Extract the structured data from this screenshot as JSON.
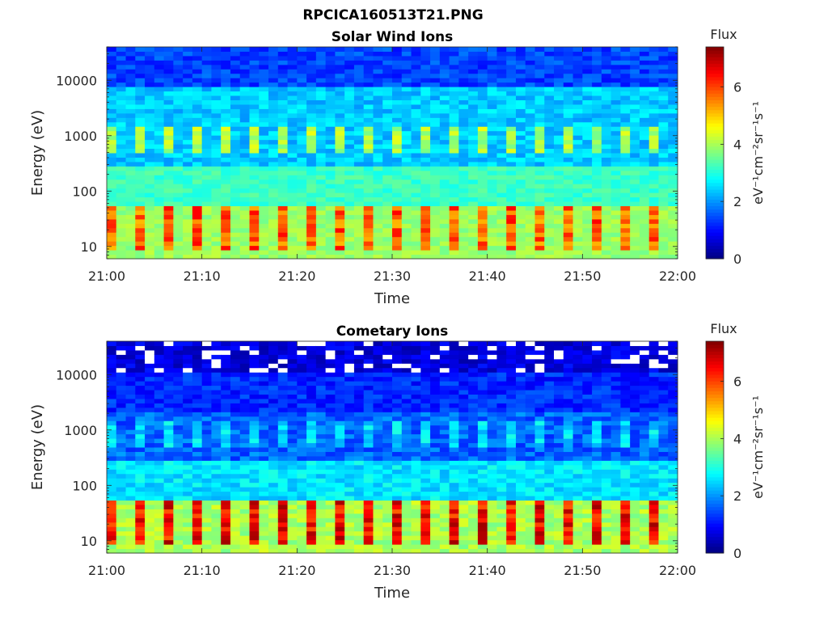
{
  "figure_title": "RPCICA160513T21.PNG",
  "chart_data": [
    {
      "type": "heatmap",
      "title": "Solar Wind Ions",
      "xlabel": "Time",
      "ylabel": "Energy (eV)",
      "yscale": "log",
      "x_ticks": [
        "21:00",
        "21:10",
        "21:20",
        "21:30",
        "21:40",
        "21:50",
        "22:00"
      ],
      "y_ticks": [
        "10",
        "100",
        "1000",
        "10000"
      ],
      "y_tick_values": [
        10,
        100,
        1000,
        10000
      ],
      "ylim": [
        6,
        40000
      ],
      "colorbar": {
        "title": "Flux",
        "label": "eV⁻¹cm⁻²sr⁻¹s⁻¹",
        "ticks": [
          "0",
          "2",
          "4",
          "6"
        ],
        "tick_values": [
          0,
          2,
          4,
          6
        ],
        "range": [
          0,
          7.4
        ],
        "colormap": "jet"
      },
      "features": [
        {
          "energy_range_eV": [
            8,
            50
          ],
          "peak_flux": 6.5,
          "description": "low energy band"
        },
        {
          "energy_range_eV": [
            500,
            1500
          ],
          "peak_flux": 4.5,
          "description": "pulsed band"
        }
      ]
    },
    {
      "type": "heatmap",
      "title": "Cometary Ions",
      "xlabel": "Time",
      "ylabel": "Energy (eV)",
      "yscale": "log",
      "x_ticks": [
        "21:00",
        "21:10",
        "21:20",
        "21:30",
        "21:40",
        "21:50",
        "22:00"
      ],
      "y_ticks": [
        "10",
        "100",
        "1000",
        "10000"
      ],
      "y_tick_values": [
        10,
        100,
        1000,
        10000
      ],
      "ylim": [
        6,
        40000
      ],
      "colorbar": {
        "title": "Flux",
        "label": "eV⁻¹cm⁻²sr⁻¹s⁻¹",
        "ticks": [
          "0",
          "2",
          "4",
          "6"
        ],
        "tick_values": [
          0,
          2,
          4,
          6
        ],
        "range": [
          0,
          7.4
        ],
        "colormap": "jet"
      },
      "features": [
        {
          "energy_range_eV": [
            8,
            50
          ],
          "peak_flux": 7.2,
          "description": "low energy band"
        },
        {
          "energy_range_eV": [
            500,
            1500
          ],
          "peak_flux": 3.0,
          "description": "pulsed band"
        }
      ]
    }
  ]
}
